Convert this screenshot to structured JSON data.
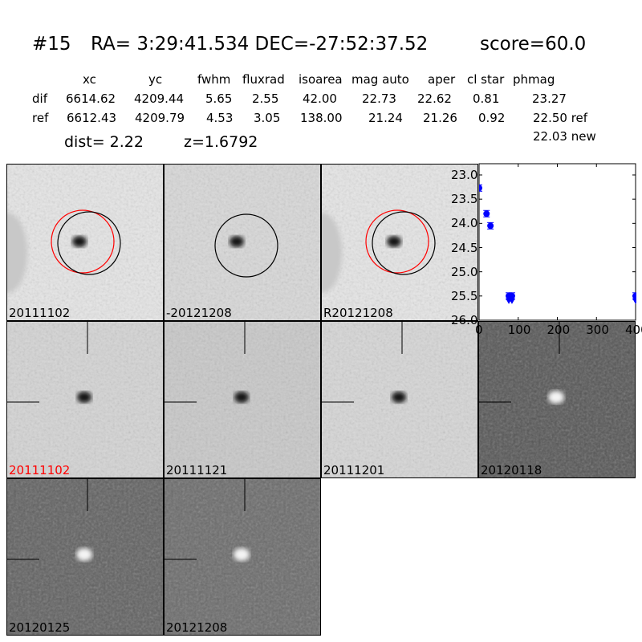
{
  "header": {
    "title_id": "#15",
    "title_coords": "RA= 3:29:41.534 DEC=-27:52:37.52",
    "title_score": "score=60.0",
    "columns": [
      "xc",
      "yc",
      "fwhm",
      "fluxrad",
      "isoarea",
      "mag auto",
      "aper",
      "cl star",
      "phmag"
    ],
    "rows": [
      {
        "label": "dif",
        "values": [
          "6614.62",
          "4209.44",
          "5.65",
          "2.55",
          "42.00",
          "22.73",
          "22.62",
          "0.81",
          "23.27"
        ]
      },
      {
        "label": "ref",
        "values": [
          "6612.43",
          "4209.79",
          "4.53",
          "3.05",
          "138.00",
          "21.24",
          "21.26",
          "0.92",
          "22.50 ref"
        ]
      }
    ],
    "phmag_new": "22.03 new",
    "dist": "dist=  2.22",
    "z": "z=1.6792"
  },
  "stamps": [
    {
      "label": "20111102",
      "bg": "#e6e6e6",
      "blob": "dark",
      "circles": [
        "red",
        "black"
      ]
    },
    {
      "label": "-20121208",
      "bg": "#d8d8d8",
      "blob": "dark",
      "circles": [
        "black"
      ]
    },
    {
      "label": "R20121208",
      "bg": "#e6e6e6",
      "blob": "dark",
      "circles": [
        "red",
        "black"
      ]
    },
    {
      "label": "20111102",
      "bg": "#d4d4d4",
      "blob": "dark",
      "label_color": "#ff0000"
    },
    {
      "label": "20111121",
      "bg": "#c8c8c8",
      "blob": "dark"
    },
    {
      "label": "20111201",
      "bg": "#d6d6d6",
      "blob": "dark"
    },
    {
      "label": "20120118",
      "bg": "#555555",
      "blob": "light"
    },
    {
      "label": "20120125",
      "bg": "#606060",
      "blob": "light"
    },
    {
      "label": "20121208",
      "bg": "#6a6a6a",
      "blob": "light"
    }
  ],
  "chart_data": {
    "type": "scatter",
    "xlim": [
      0,
      400
    ],
    "ylim": [
      26.0,
      22.77
    ],
    "y_inverted": true,
    "xticks": [
      "0",
      "100",
      "200",
      "300",
      "400"
    ],
    "yticks": [
      "23.0",
      "23.5",
      "24.0",
      "24.5",
      "25.0",
      "25.5",
      "26.0"
    ],
    "marker_color": "#0000ff",
    "detections": [
      {
        "x": 0,
        "y": 23.27
      },
      {
        "x": 19,
        "y": 23.8
      },
      {
        "x": 29,
        "y": 24.05
      },
      {
        "x": 76,
        "y": 25.5
      },
      {
        "x": 84,
        "y": 25.5
      },
      {
        "x": 400,
        "y": 25.5
      }
    ],
    "upper_limits": [
      {
        "x": 76,
        "y": 25.5
      },
      {
        "x": 84,
        "y": 25.5
      },
      {
        "x": 400,
        "y": 25.5
      }
    ]
  }
}
